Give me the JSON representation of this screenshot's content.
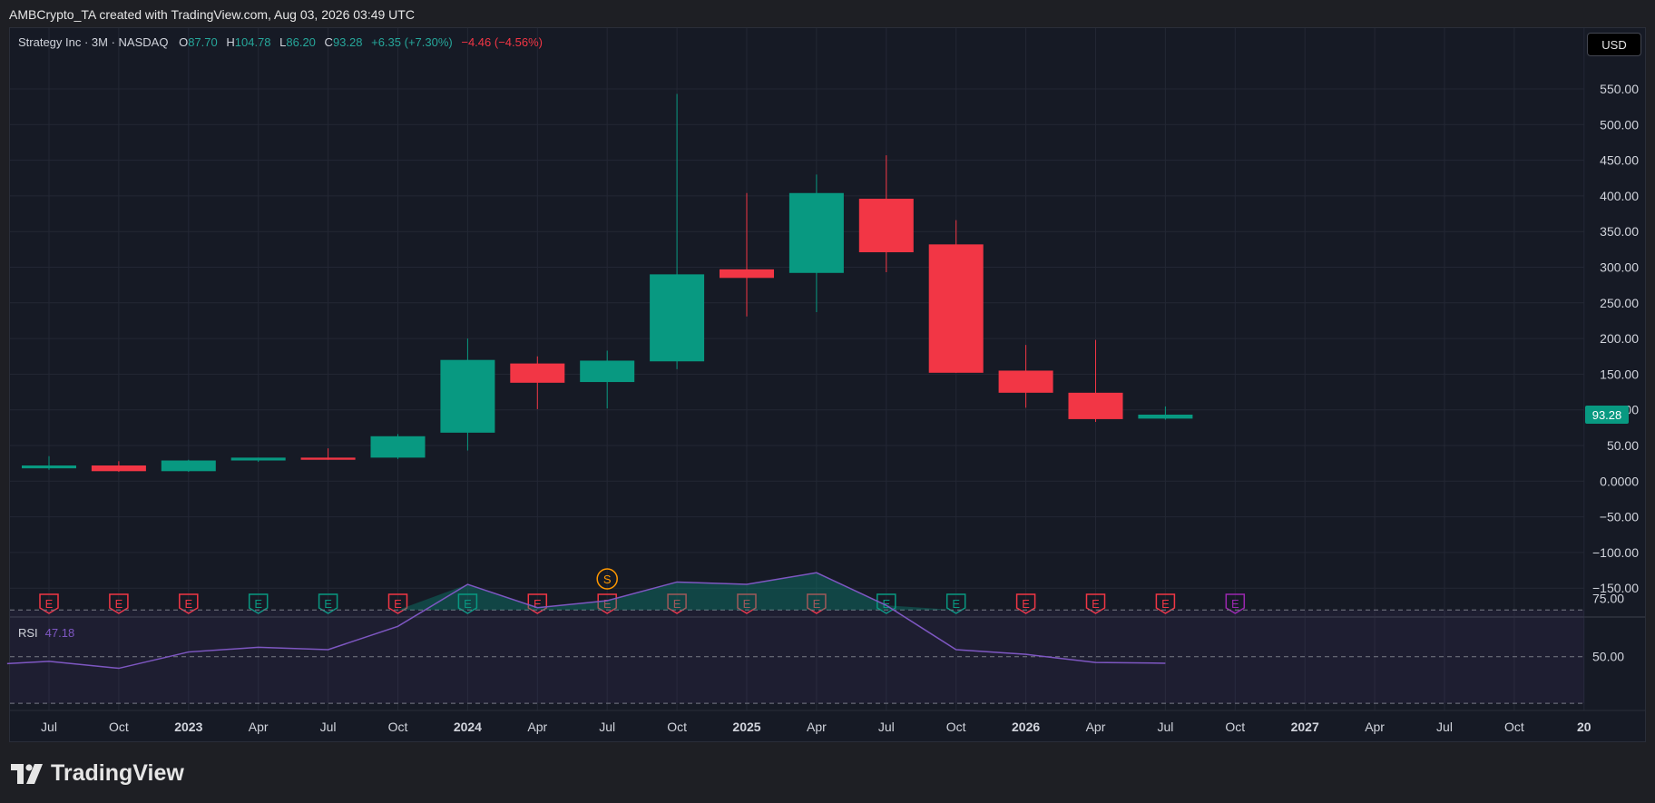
{
  "header": {
    "attribution": "AMBCrypto_TA created with TradingView.com, Aug 03, 2026 03:49 UTC"
  },
  "legend": {
    "symbol": "Strategy Inc · 3M · NASDAQ",
    "o_label": "O",
    "o_value": "87.70",
    "h_label": "H",
    "h_value": "104.78",
    "l_label": "L",
    "l_value": "86.20",
    "c_label": "C",
    "c_value": "93.28",
    "change": "+6.35 (+7.30%)",
    "change2": "−4.46 (−4.56%)"
  },
  "currency_button": "USD",
  "rsi": {
    "label": "RSI",
    "value": "47.18"
  },
  "branding": {
    "logo_text": "TradingView"
  },
  "colors": {
    "up": "#089981",
    "down": "#f23645",
    "rsi_line": "#7e57c2",
    "background": "#161a25"
  },
  "chart_data": {
    "type": "candlestick",
    "interval": "3M",
    "ylim": [
      -170,
      600
    ],
    "y_ticks": [
      550,
      500,
      450,
      400,
      350,
      300,
      250,
      200,
      150,
      100,
      50,
      0,
      -50,
      -100,
      -150
    ],
    "y_tick_labels": [
      "550.00",
      "500.00",
      "450.00",
      "400.00",
      "350.00",
      "300.00",
      "250.00",
      "200.00",
      "150.00",
      "100.00",
      "50.00",
      "0.0000",
      "−50.00",
      "−100.00",
      "−150.00"
    ],
    "last_price_label": "93.28",
    "last_price": 93.28,
    "x_axis_labels": [
      {
        "t": 0,
        "label": "Jul",
        "bold": false
      },
      {
        "t": 1,
        "label": "Oct",
        "bold": false
      },
      {
        "t": 2,
        "label": "2023",
        "bold": true
      },
      {
        "t": 3,
        "label": "Apr",
        "bold": false
      },
      {
        "t": 4,
        "label": "Jul",
        "bold": false
      },
      {
        "t": 5,
        "label": "Oct",
        "bold": false
      },
      {
        "t": 6,
        "label": "2024",
        "bold": true
      },
      {
        "t": 7,
        "label": "Apr",
        "bold": false
      },
      {
        "t": 8,
        "label": "Jul",
        "bold": false
      },
      {
        "t": 9,
        "label": "Oct",
        "bold": false
      },
      {
        "t": 10,
        "label": "2025",
        "bold": true
      },
      {
        "t": 11,
        "label": "Apr",
        "bold": false
      },
      {
        "t": 12,
        "label": "Jul",
        "bold": false
      },
      {
        "t": 13,
        "label": "Oct",
        "bold": false
      },
      {
        "t": 14,
        "label": "2026",
        "bold": true
      },
      {
        "t": 15,
        "label": "Apr",
        "bold": false
      },
      {
        "t": 16,
        "label": "Jul",
        "bold": false
      },
      {
        "t": 17,
        "label": "Oct",
        "bold": false
      },
      {
        "t": 18,
        "label": "2027",
        "bold": true
      },
      {
        "t": 19,
        "label": "Apr",
        "bold": false
      },
      {
        "t": 20,
        "label": "Jul",
        "bold": false
      },
      {
        "t": 21,
        "label": "Oct",
        "bold": false
      },
      {
        "t": 22,
        "label": "20",
        "bold": true
      }
    ],
    "candles": [
      {
        "t": 0,
        "open": 18,
        "high": 35,
        "low": 16,
        "close": 22
      },
      {
        "t": 1,
        "open": 22,
        "high": 28,
        "low": 13,
        "close": 14
      },
      {
        "t": 2,
        "open": 14,
        "high": 30,
        "low": 13,
        "close": 29
      },
      {
        "t": 3,
        "open": 29,
        "high": 33,
        "low": 27,
        "close": 33
      },
      {
        "t": 4,
        "open": 33,
        "high": 46,
        "low": 30,
        "close": 30
      },
      {
        "t": 5,
        "open": 33,
        "high": 66,
        "low": 31,
        "close": 63
      },
      {
        "t": 6,
        "open": 68,
        "high": 200,
        "low": 43,
        "close": 170
      },
      {
        "t": 7,
        "open": 165,
        "high": 175,
        "low": 101,
        "close": 138
      },
      {
        "t": 8,
        "open": 139,
        "high": 183,
        "low": 102,
        "close": 169
      },
      {
        "t": 9,
        "open": 168,
        "high": 543,
        "low": 157,
        "close": 290
      },
      {
        "t": 10,
        "open": 297,
        "high": 404,
        "low": 231,
        "close": 285
      },
      {
        "t": 11,
        "open": 292,
        "high": 430,
        "low": 237,
        "close": 404
      },
      {
        "t": 12,
        "open": 396,
        "high": 457,
        "low": 293,
        "close": 321
      },
      {
        "t": 13,
        "open": 332,
        "high": 366,
        "low": 152,
        "close": 152
      },
      {
        "t": 14,
        "open": 155,
        "high": 191,
        "low": 103,
        "close": 124
      },
      {
        "t": 15,
        "open": 124,
        "high": 198,
        "low": 83,
        "close": 87
      },
      {
        "t": 16,
        "open": 87.7,
        "high": 104.78,
        "low": 86.2,
        "close": 93.28
      }
    ],
    "events": [
      {
        "t": 0,
        "type": "E",
        "color": "down"
      },
      {
        "t": 1,
        "type": "E",
        "color": "down"
      },
      {
        "t": 2,
        "type": "E",
        "color": "down"
      },
      {
        "t": 3,
        "type": "E",
        "color": "up"
      },
      {
        "t": 4,
        "type": "E",
        "color": "up"
      },
      {
        "t": 5,
        "type": "E",
        "color": "down"
      },
      {
        "t": 6,
        "type": "E",
        "color": "up"
      },
      {
        "t": 7,
        "type": "E",
        "color": "down"
      },
      {
        "t": 8,
        "type": "E",
        "color": "down"
      },
      {
        "t": 9,
        "type": "E",
        "color": "down"
      },
      {
        "t": 10,
        "type": "E",
        "color": "down"
      },
      {
        "t": 11,
        "type": "E",
        "color": "down"
      },
      {
        "t": 12,
        "type": "E",
        "color": "up"
      },
      {
        "t": 13,
        "type": "E",
        "color": "up"
      },
      {
        "t": 14,
        "type": "E",
        "color": "down"
      },
      {
        "t": 15,
        "type": "E",
        "color": "down"
      },
      {
        "t": 16,
        "type": "E",
        "color": "down"
      },
      {
        "t": 17,
        "type": "E",
        "color": "future"
      }
    ],
    "split_marker": {
      "t": 8,
      "label": "S"
    },
    "rsi_series": {
      "name": "RSI",
      "ylim": [
        20,
        100
      ],
      "overbought": 70,
      "midline": 50,
      "oversold": 30,
      "y_tick_labels": [
        "75.00",
        "50.00"
      ],
      "values": [
        {
          "t": -0.6,
          "v": 47
        },
        {
          "t": 0,
          "v": 48
        },
        {
          "t": 1,
          "v": 45
        },
        {
          "t": 2,
          "v": 52
        },
        {
          "t": 3,
          "v": 54
        },
        {
          "t": 4,
          "v": 53
        },
        {
          "t": 5,
          "v": 63
        },
        {
          "t": 6,
          "v": 81
        },
        {
          "t": 7,
          "v": 71
        },
        {
          "t": 8,
          "v": 74
        },
        {
          "t": 9,
          "v": 82
        },
        {
          "t": 10,
          "v": 81
        },
        {
          "t": 11,
          "v": 86
        },
        {
          "t": 12,
          "v": 72
        },
        {
          "t": 13,
          "v": 53
        },
        {
          "t": 14,
          "v": 51
        },
        {
          "t": 15,
          "v": 47.5
        },
        {
          "t": 16,
          "v": 47.18
        }
      ]
    }
  }
}
